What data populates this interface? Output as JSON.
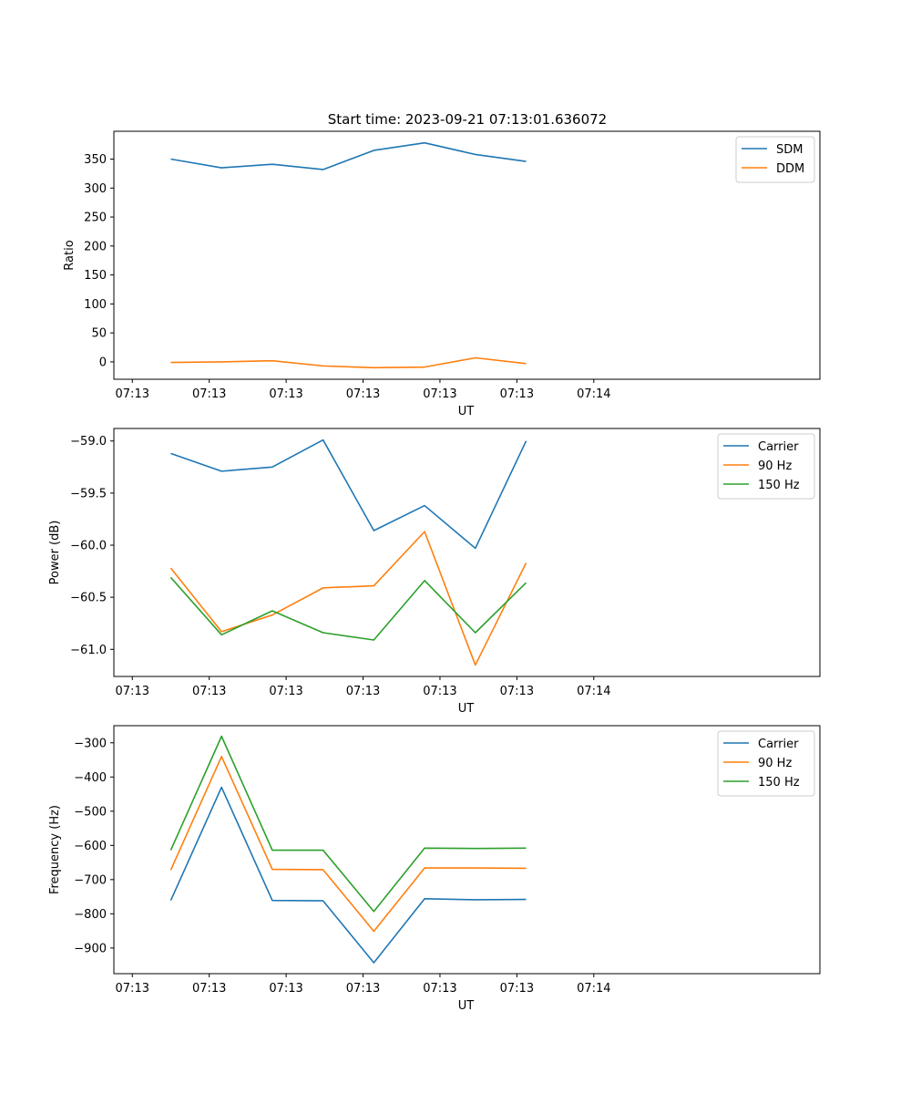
{
  "figure": {
    "title": "Start time: 2023-09-21 07:13:01.636072"
  },
  "chart_data": [
    {
      "type": "line",
      "xlabel": "UT",
      "ylabel": "Ratio",
      "xlim": [
        -0.12,
        4.47
      ],
      "ylim": [
        -30,
        398
      ],
      "xticks": [
        0,
        0.5,
        1,
        1.5,
        2,
        2.5,
        3
      ],
      "x_tick_labels": [
        "07:13",
        "07:13",
        "07:13",
        "07:13",
        "07:13",
        "07:13",
        "07:14"
      ],
      "yticks": [
        0,
        50,
        100,
        150,
        200,
        250,
        300,
        350
      ],
      "y_tick_labels": [
        "0",
        "50",
        "100",
        "150",
        "200",
        "250",
        "300",
        "350"
      ],
      "grid": false,
      "legend_position": "top-right",
      "x": [
        0.25,
        0.58,
        0.91,
        1.24,
        1.57,
        1.9,
        2.23,
        2.56
      ],
      "series": [
        {
          "name": "SDM",
          "color": "#1f77b4",
          "values": [
            350,
            335,
            341,
            332,
            365,
            378,
            358,
            346
          ]
        },
        {
          "name": "DDM",
          "color": "#ff7f0e",
          "values": [
            -1,
            0,
            2,
            -7,
            -10,
            -9,
            7,
            -3
          ]
        }
      ]
    },
    {
      "type": "line",
      "xlabel": "UT",
      "ylabel": "Power (dB)",
      "xlim": [
        -0.12,
        4.47
      ],
      "ylim": [
        -61.26,
        -58.88
      ],
      "xticks": [
        0,
        0.5,
        1,
        1.5,
        2,
        2.5,
        3
      ],
      "x_tick_labels": [
        "07:13",
        "07:13",
        "07:13",
        "07:13",
        "07:13",
        "07:13",
        "07:14"
      ],
      "yticks": [
        -61.0,
        -60.5,
        -60.0,
        -59.5,
        -59.0
      ],
      "y_tick_labels": [
        "−61.0",
        "−60.5",
        "−60.0",
        "−59.5",
        "−59.0"
      ],
      "grid": false,
      "legend_position": "top-right",
      "x": [
        0.25,
        0.58,
        0.91,
        1.24,
        1.57,
        1.9,
        2.23,
        2.56
      ],
      "series": [
        {
          "name": "Carrier",
          "color": "#1f77b4",
          "values": [
            -59.12,
            -59.29,
            -59.25,
            -58.99,
            -59.86,
            -59.62,
            -60.03,
            -59.0
          ]
        },
        {
          "name": "90 Hz",
          "color": "#ff7f0e",
          "values": [
            -60.22,
            -60.83,
            -60.67,
            -60.41,
            -60.39,
            -59.87,
            -61.15,
            -60.17
          ]
        },
        {
          "name": "150 Hz",
          "color": "#2ca02c",
          "values": [
            -60.31,
            -60.86,
            -60.63,
            -60.84,
            -60.91,
            -60.34,
            -60.84,
            -60.36
          ]
        }
      ]
    },
    {
      "type": "line",
      "xlabel": "UT",
      "ylabel": "Frequency (Hz)",
      "xlim": [
        -0.12,
        4.47
      ],
      "ylim": [
        -975,
        -250
      ],
      "xticks": [
        0,
        0.5,
        1,
        1.5,
        2,
        2.5,
        3
      ],
      "x_tick_labels": [
        "07:13",
        "07:13",
        "07:13",
        "07:13",
        "07:13",
        "07:13",
        "07:14"
      ],
      "yticks": [
        -900,
        -800,
        -700,
        -600,
        -500,
        -400,
        -300
      ],
      "y_tick_labels": [
        "−900",
        "−800",
        "−700",
        "−600",
        "−500",
        "−400",
        "−300"
      ],
      "grid": false,
      "legend_position": "top-right",
      "x": [
        0.25,
        0.58,
        0.91,
        1.24,
        1.57,
        1.9,
        2.23,
        2.56
      ],
      "series": [
        {
          "name": "Carrier",
          "color": "#1f77b4",
          "values": [
            -761,
            -430,
            -761,
            -762,
            -943,
            -756,
            -759,
            -758
          ]
        },
        {
          "name": "90 Hz",
          "color": "#ff7f0e",
          "values": [
            -672,
            -340,
            -670,
            -671,
            -851,
            -666,
            -666,
            -667
          ]
        },
        {
          "name": "150 Hz",
          "color": "#2ca02c",
          "values": [
            -614,
            -281,
            -614,
            -614,
            -793,
            -608,
            -609,
            -608
          ]
        }
      ]
    }
  ]
}
